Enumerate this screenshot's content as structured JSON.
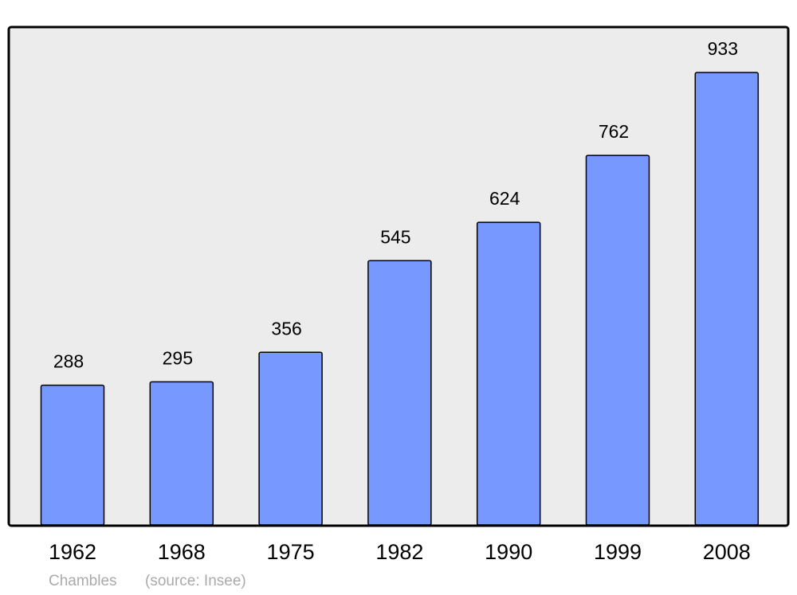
{
  "chart_data": {
    "type": "bar",
    "title": "Chambles",
    "source": "(source: Insee)",
    "categories": [
      "1962",
      "1968",
      "1975",
      "1982",
      "1990",
      "1999",
      "2008"
    ],
    "values": [
      288,
      295,
      356,
      545,
      624,
      762,
      933
    ],
    "color": "#7799ff",
    "ylim": [
      0,
      1025
    ]
  }
}
